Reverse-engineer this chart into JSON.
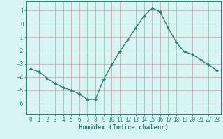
{
  "x": [
    0,
    1,
    2,
    3,
    4,
    5,
    6,
    7,
    8,
    9,
    10,
    11,
    12,
    13,
    14,
    15,
    16,
    17,
    18,
    19,
    20,
    21,
    22,
    23
  ],
  "y": [
    -3.4,
    -3.6,
    -4.1,
    -4.5,
    -4.8,
    -5.0,
    -5.3,
    -5.7,
    -5.7,
    -4.2,
    -3.1,
    -2.1,
    -1.2,
    -0.3,
    0.6,
    1.2,
    0.9,
    -0.3,
    -1.4,
    -2.1,
    -2.3,
    -2.7,
    -3.1,
    -3.5
  ],
  "line_color": "#2e7d6e",
  "marker": "D",
  "marker_size": 2.2,
  "bg_color": "#d8f5f5",
  "grid_color": "#c4a0a0",
  "xlabel": "Humidex (Indice chaleur)",
  "xlim": [
    -0.5,
    23.5
  ],
  "ylim": [
    -6.8,
    1.7
  ],
  "yticks": [
    -6,
    -5,
    -4,
    -3,
    -2,
    -1,
    0,
    1
  ],
  "xticks": [
    0,
    1,
    2,
    3,
    4,
    5,
    6,
    7,
    8,
    9,
    10,
    11,
    12,
    13,
    14,
    15,
    16,
    17,
    18,
    19,
    20,
    21,
    22,
    23
  ],
  "tick_label_fontsize": 5.5,
  "xlabel_fontsize": 6.5,
  "axis_color": "#2e7d6e",
  "line_width": 1.0
}
